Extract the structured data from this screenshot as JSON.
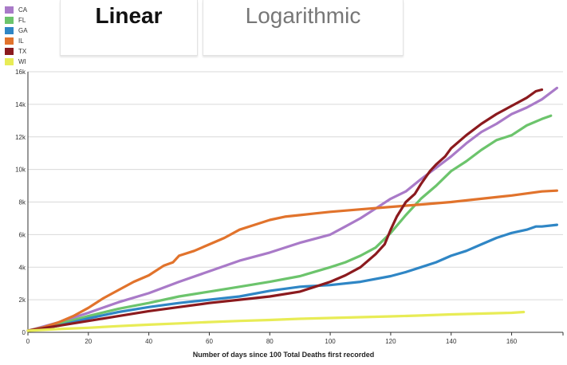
{
  "tabs": [
    {
      "label": "Linear",
      "active": true
    },
    {
      "label": "Logarithmic",
      "active": false
    }
  ],
  "chart_data": {
    "type": "line",
    "xlabel": "Number of days since 100 Total Deaths first recorded",
    "ylabel": "",
    "xlim": [
      0,
      177
    ],
    "ylim": [
      0,
      16000
    ],
    "xticks": [
      0,
      20,
      40,
      60,
      80,
      100,
      120,
      140,
      160
    ],
    "yticks": [
      0,
      2000,
      4000,
      6000,
      8000,
      10000,
      12000,
      14000,
      16000
    ],
    "ytick_labels": [
      "0",
      "2k",
      "4k",
      "6k",
      "8k",
      "10k",
      "12k",
      "14k",
      "16k"
    ],
    "grid": true,
    "legend_position": "top-left",
    "series": [
      {
        "name": "CA",
        "color": "#a97ac8",
        "points": [
          [
            0,
            100
          ],
          [
            10,
            600
          ],
          [
            20,
            1200
          ],
          [
            30,
            1850
          ],
          [
            40,
            2400
          ],
          [
            50,
            3100
          ],
          [
            60,
            3750
          ],
          [
            70,
            4400
          ],
          [
            80,
            4900
          ],
          [
            90,
            5500
          ],
          [
            100,
            6000
          ],
          [
            105,
            6500
          ],
          [
            110,
            7000
          ],
          [
            115,
            7600
          ],
          [
            120,
            8200
          ],
          [
            125,
            8650
          ],
          [
            130,
            9400
          ],
          [
            135,
            10100
          ],
          [
            140,
            10800
          ],
          [
            145,
            11600
          ],
          [
            150,
            12300
          ],
          [
            155,
            12800
          ],
          [
            160,
            13400
          ],
          [
            165,
            13800
          ],
          [
            170,
            14300
          ],
          [
            175,
            15000
          ]
        ]
      },
      {
        "name": "FL",
        "color": "#6cc46c",
        "points": [
          [
            0,
            100
          ],
          [
            10,
            500
          ],
          [
            20,
            1000
          ],
          [
            30,
            1450
          ],
          [
            40,
            1800
          ],
          [
            50,
            2200
          ],
          [
            60,
            2500
          ],
          [
            70,
            2800
          ],
          [
            80,
            3100
          ],
          [
            90,
            3450
          ],
          [
            100,
            4000
          ],
          [
            105,
            4300
          ],
          [
            110,
            4700
          ],
          [
            115,
            5200
          ],
          [
            120,
            6100
          ],
          [
            125,
            7200
          ],
          [
            130,
            8200
          ],
          [
            135,
            9000
          ],
          [
            140,
            9900
          ],
          [
            145,
            10500
          ],
          [
            150,
            11200
          ],
          [
            155,
            11800
          ],
          [
            160,
            12100
          ],
          [
            165,
            12700
          ],
          [
            170,
            13100
          ],
          [
            173,
            13300
          ]
        ]
      },
      {
        "name": "GA",
        "color": "#2f86c5",
        "points": [
          [
            0,
            100
          ],
          [
            10,
            400
          ],
          [
            20,
            850
          ],
          [
            30,
            1250
          ],
          [
            40,
            1550
          ],
          [
            50,
            1800
          ],
          [
            60,
            2000
          ],
          [
            70,
            2200
          ],
          [
            80,
            2550
          ],
          [
            90,
            2800
          ],
          [
            100,
            2900
          ],
          [
            110,
            3100
          ],
          [
            120,
            3450
          ],
          [
            125,
            3700
          ],
          [
            130,
            4000
          ],
          [
            135,
            4300
          ],
          [
            140,
            4700
          ],
          [
            145,
            5000
          ],
          [
            150,
            5400
          ],
          [
            155,
            5800
          ],
          [
            160,
            6100
          ],
          [
            165,
            6300
          ],
          [
            168,
            6500
          ],
          [
            170,
            6500
          ],
          [
            175,
            6600
          ]
        ]
      },
      {
        "name": "IL",
        "color": "#e1732c",
        "points": [
          [
            0,
            100
          ],
          [
            5,
            300
          ],
          [
            10,
            600
          ],
          [
            15,
            1000
          ],
          [
            20,
            1500
          ],
          [
            25,
            2100
          ],
          [
            30,
            2600
          ],
          [
            35,
            3100
          ],
          [
            40,
            3500
          ],
          [
            45,
            4100
          ],
          [
            48,
            4300
          ],
          [
            50,
            4700
          ],
          [
            55,
            5000
          ],
          [
            60,
            5400
          ],
          [
            65,
            5800
          ],
          [
            70,
            6300
          ],
          [
            75,
            6600
          ],
          [
            80,
            6900
          ],
          [
            85,
            7100
          ],
          [
            90,
            7200
          ],
          [
            95,
            7300
          ],
          [
            100,
            7400
          ],
          [
            110,
            7550
          ],
          [
            120,
            7700
          ],
          [
            130,
            7850
          ],
          [
            140,
            8000
          ],
          [
            150,
            8200
          ],
          [
            160,
            8400
          ],
          [
            170,
            8650
          ],
          [
            175,
            8700
          ]
        ]
      },
      {
        "name": "TX",
        "color": "#8b1a1e",
        "points": [
          [
            0,
            100
          ],
          [
            10,
            400
          ],
          [
            20,
            700
          ],
          [
            30,
            1000
          ],
          [
            40,
            1300
          ],
          [
            50,
            1550
          ],
          [
            60,
            1800
          ],
          [
            70,
            2000
          ],
          [
            80,
            2200
          ],
          [
            90,
            2500
          ],
          [
            95,
            2800
          ],
          [
            100,
            3100
          ],
          [
            105,
            3500
          ],
          [
            110,
            4000
          ],
          [
            115,
            4800
          ],
          [
            118,
            5400
          ],
          [
            120,
            6300
          ],
          [
            122,
            7100
          ],
          [
            125,
            8000
          ],
          [
            128,
            8500
          ],
          [
            130,
            9100
          ],
          [
            133,
            9900
          ],
          [
            135,
            10300
          ],
          [
            138,
            10800
          ],
          [
            140,
            11300
          ],
          [
            145,
            12100
          ],
          [
            150,
            12800
          ],
          [
            155,
            13400
          ],
          [
            160,
            13900
          ],
          [
            165,
            14400
          ],
          [
            168,
            14800
          ],
          [
            170,
            14900
          ]
        ]
      },
      {
        "name": "WI",
        "color": "#e8ec56",
        "points": [
          [
            0,
            100
          ],
          [
            10,
            200
          ],
          [
            20,
            280
          ],
          [
            30,
            380
          ],
          [
            40,
            470
          ],
          [
            50,
            550
          ],
          [
            60,
            630
          ],
          [
            70,
            700
          ],
          [
            80,
            760
          ],
          [
            90,
            830
          ],
          [
            100,
            880
          ],
          [
            110,
            930
          ],
          [
            120,
            980
          ],
          [
            130,
            1030
          ],
          [
            140,
            1100
          ],
          [
            150,
            1150
          ],
          [
            160,
            1200
          ],
          [
            164,
            1250
          ]
        ]
      }
    ]
  }
}
